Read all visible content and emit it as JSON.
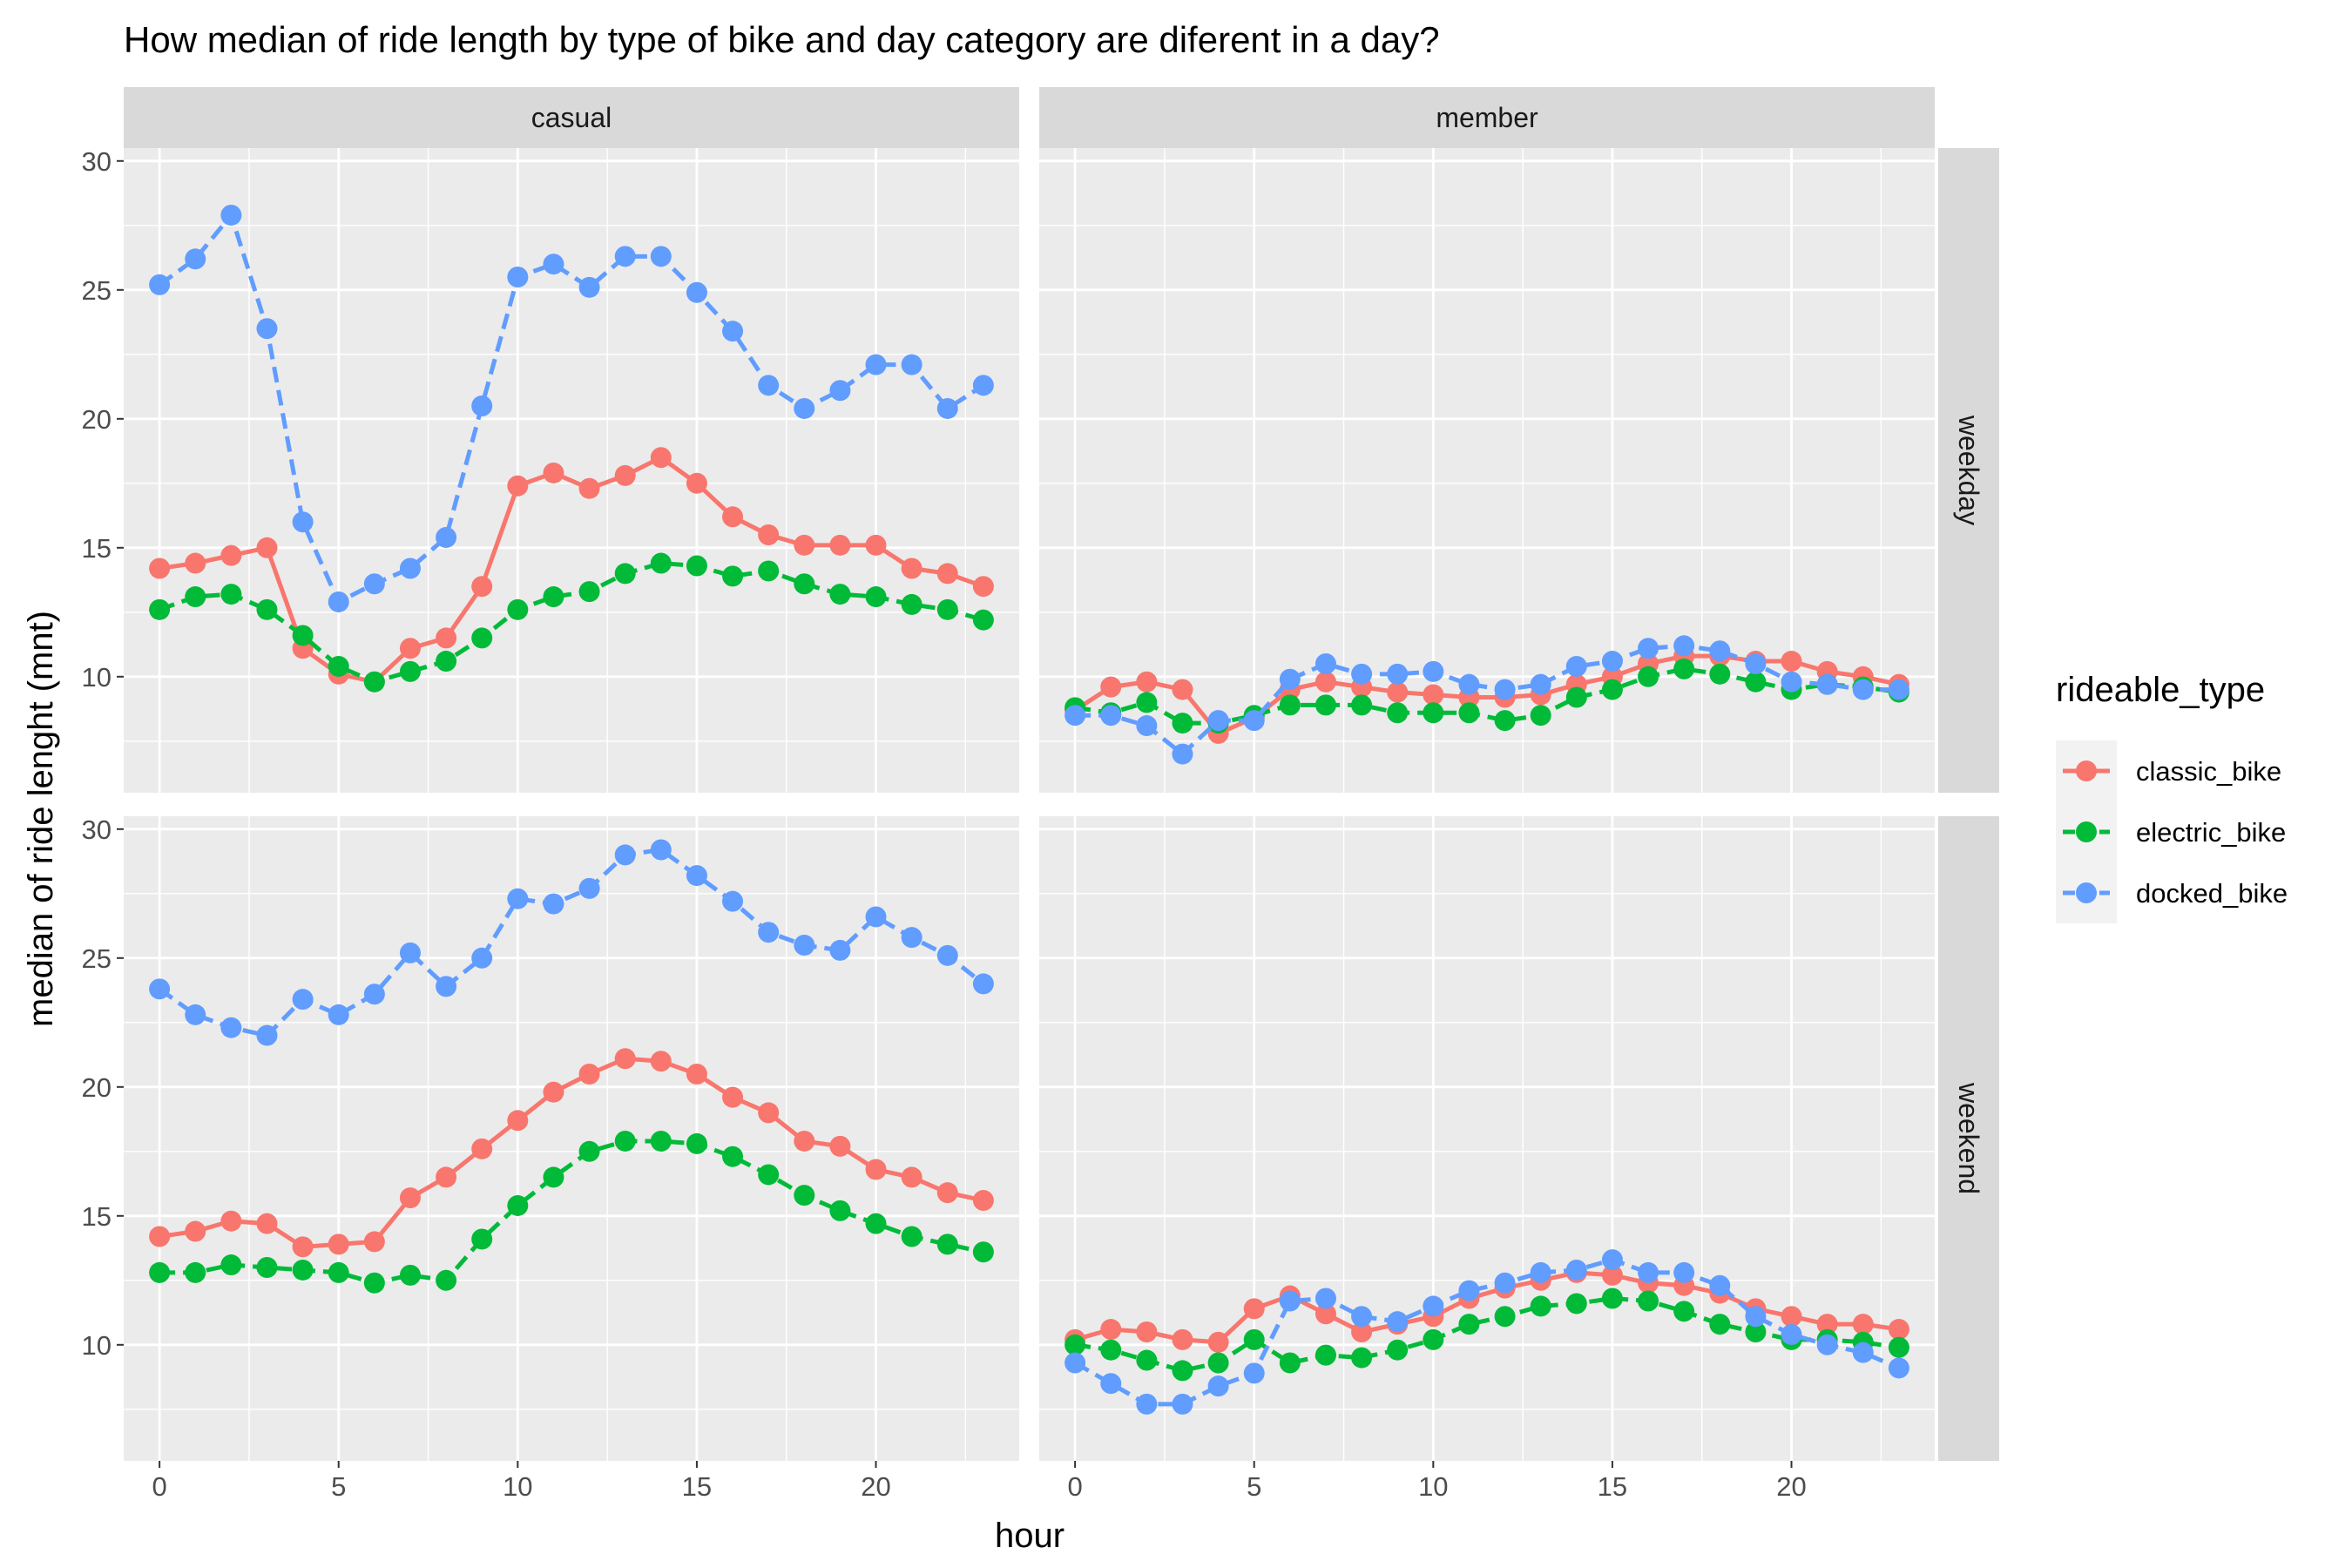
{
  "chart_data": {
    "type": "line",
    "title": "How median of ride length by type of bike and day category are diferent in a day?",
    "xlabel": "hour",
    "ylabel": "median of ride lenght (mnt)",
    "xlim": [
      -1,
      24
    ],
    "ylim": [
      5.5,
      30.5
    ],
    "xticks": [
      0,
      5,
      10,
      15,
      20
    ],
    "yticks": [
      10,
      15,
      20,
      25,
      30
    ],
    "grid": true,
    "legend": {
      "title": "rideable_type",
      "placement": "right",
      "items": [
        {
          "name": "classic_bike",
          "color": "#F8766D",
          "dashed": false
        },
        {
          "name": "electric_bike",
          "color": "#00BA38",
          "dashed": true
        },
        {
          "name": "docked_bike",
          "color": "#619CFF",
          "dashed": true
        }
      ]
    },
    "column_strips": [
      "casual",
      "member"
    ],
    "row_strips": [
      "weekday",
      "weekend"
    ],
    "x": [
      0,
      1,
      2,
      3,
      4,
      5,
      6,
      7,
      8,
      9,
      10,
      11,
      12,
      13,
      14,
      15,
      16,
      17,
      18,
      19,
      20,
      21,
      22,
      23
    ],
    "panels": [
      {
        "column": "casual",
        "row": "weekday",
        "series": [
          {
            "name": "classic_bike",
            "values": [
              14.2,
              14.4,
              14.7,
              15.0,
              11.1,
              10.1,
              9.8,
              11.1,
              11.5,
              13.5,
              17.4,
              17.9,
              17.3,
              17.8,
              18.5,
              17.5,
              16.2,
              15.5,
              15.1,
              15.1,
              15.1,
              14.2,
              14.0,
              13.5
            ]
          },
          {
            "name": "electric_bike",
            "values": [
              12.6,
              13.1,
              13.2,
              12.6,
              11.6,
              10.4,
              9.8,
              10.2,
              10.6,
              11.5,
              12.6,
              13.1,
              13.3,
              14.0,
              14.4,
              14.3,
              13.9,
              14.1,
              13.6,
              13.2,
              13.1,
              12.8,
              12.6,
              12.2
            ]
          },
          {
            "name": "docked_bike",
            "values": [
              25.2,
              26.2,
              27.9,
              23.5,
              16.0,
              12.9,
              13.6,
              14.2,
              15.4,
              20.5,
              25.5,
              26.0,
              25.1,
              26.3,
              26.3,
              24.9,
              23.4,
              21.3,
              20.4,
              21.1,
              22.1,
              22.1,
              20.4,
              21.3
            ]
          }
        ]
      },
      {
        "column": "member",
        "row": "weekday",
        "series": [
          {
            "name": "classic_bike",
            "values": [
              8.7,
              9.6,
              9.8,
              9.5,
              7.8,
              8.4,
              9.5,
              9.8,
              9.6,
              9.4,
              9.3,
              9.2,
              9.2,
              9.3,
              9.7,
              10.0,
              10.5,
              10.8,
              10.8,
              10.6,
              10.6,
              10.2,
              10.0,
              9.7
            ]
          },
          {
            "name": "electric_bike",
            "values": [
              8.8,
              8.6,
              9.0,
              8.2,
              8.2,
              8.5,
              8.9,
              8.9,
              8.9,
              8.6,
              8.6,
              8.6,
              8.3,
              8.5,
              9.2,
              9.5,
              10.0,
              10.3,
              10.1,
              9.8,
              9.5,
              9.7,
              9.6,
              9.4
            ]
          },
          {
            "name": "docked_bike",
            "values": [
              8.5,
              8.5,
              8.1,
              7.0,
              8.3,
              8.3,
              9.9,
              10.5,
              10.1,
              10.1,
              10.2,
              9.7,
              9.5,
              9.7,
              10.4,
              10.6,
              11.1,
              11.2,
              11.0,
              10.5,
              9.8,
              9.7,
              9.5,
              9.5
            ]
          }
        ]
      },
      {
        "column": "casual",
        "row": "weekend",
        "series": [
          {
            "name": "classic_bike",
            "values": [
              14.2,
              14.4,
              14.8,
              14.7,
              13.8,
              13.9,
              14.0,
              15.7,
              16.5,
              17.6,
              18.7,
              19.8,
              20.5,
              21.1,
              21.0,
              20.5,
              19.6,
              19.0,
              17.9,
              17.7,
              16.8,
              16.5,
              15.9,
              15.6
            ]
          },
          {
            "name": "electric_bike",
            "values": [
              12.8,
              12.8,
              13.1,
              13.0,
              12.9,
              12.8,
              12.4,
              12.7,
              12.5,
              14.1,
              15.4,
              16.5,
              17.5,
              17.9,
              17.9,
              17.8,
              17.3,
              16.6,
              15.8,
              15.2,
              14.7,
              14.2,
              13.9,
              13.6
            ]
          },
          {
            "name": "docked_bike",
            "values": [
              23.8,
              22.8,
              22.3,
              22.0,
              23.4,
              22.8,
              23.6,
              25.2,
              23.9,
              25.0,
              27.3,
              27.1,
              27.7,
              29.0,
              29.2,
              28.2,
              27.2,
              26.0,
              25.5,
              25.3,
              26.6,
              25.8,
              25.1,
              24.0
            ]
          }
        ]
      },
      {
        "column": "member",
        "row": "weekend",
        "series": [
          {
            "name": "classic_bike",
            "values": [
              10.2,
              10.6,
              10.5,
              10.2,
              10.1,
              11.4,
              11.9,
              11.2,
              10.5,
              10.8,
              11.1,
              11.8,
              12.2,
              12.5,
              12.8,
              12.7,
              12.4,
              12.3,
              12.0,
              11.4,
              11.1,
              10.8,
              10.8,
              10.6
            ]
          },
          {
            "name": "electric_bike",
            "values": [
              10.0,
              9.8,
              9.4,
              9.0,
              9.3,
              10.2,
              9.3,
              9.6,
              9.5,
              9.8,
              10.2,
              10.8,
              11.1,
              11.5,
              11.6,
              11.8,
              11.7,
              11.3,
              10.8,
              10.5,
              10.2,
              10.2,
              10.1,
              9.9
            ]
          },
          {
            "name": "docked_bike",
            "values": [
              9.3,
              8.5,
              7.7,
              7.7,
              8.4,
              8.9,
              11.7,
              11.8,
              11.1,
              10.9,
              11.5,
              12.1,
              12.4,
              12.8,
              12.9,
              13.3,
              12.8,
              12.8,
              12.3,
              11.1,
              10.4,
              10.0,
              9.7,
              9.1
            ]
          }
        ]
      }
    ]
  }
}
